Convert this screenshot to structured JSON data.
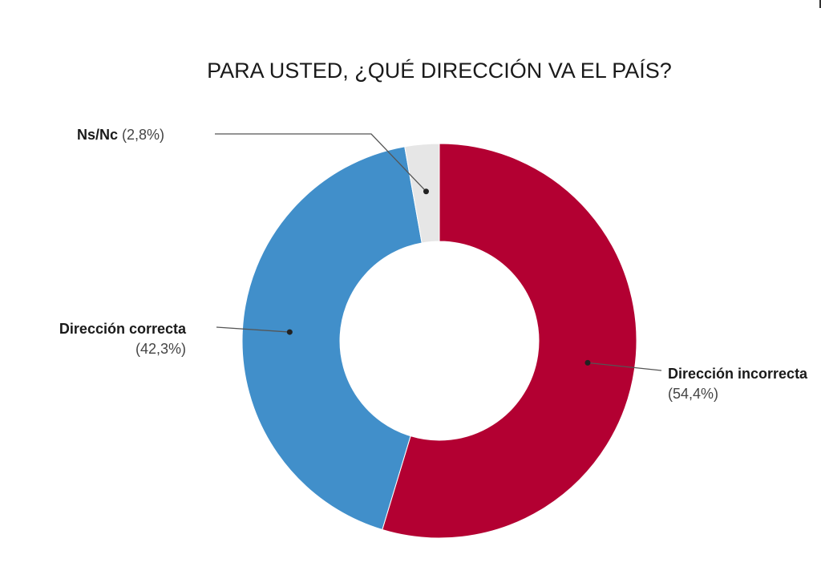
{
  "chart_data": {
    "type": "pie",
    "variant": "donut",
    "title": "PARA USTED, ¿QUÉ DIRECCIÓN VA EL PAÍS?",
    "slices": [
      {
        "label": "Dirección incorrecta",
        "value": 54.4,
        "display": "(54,4%)",
        "color": "#b30032"
      },
      {
        "label": "Dirección correcta",
        "value": 42.3,
        "display": "(42,3%)",
        "color": "#418fca"
      },
      {
        "label": "Ns/Nc",
        "value": 2.8,
        "display": "(2,8%)",
        "color": "#e6e6e6"
      }
    ],
    "legend": "none",
    "label_style": "callout-leader-lines"
  }
}
